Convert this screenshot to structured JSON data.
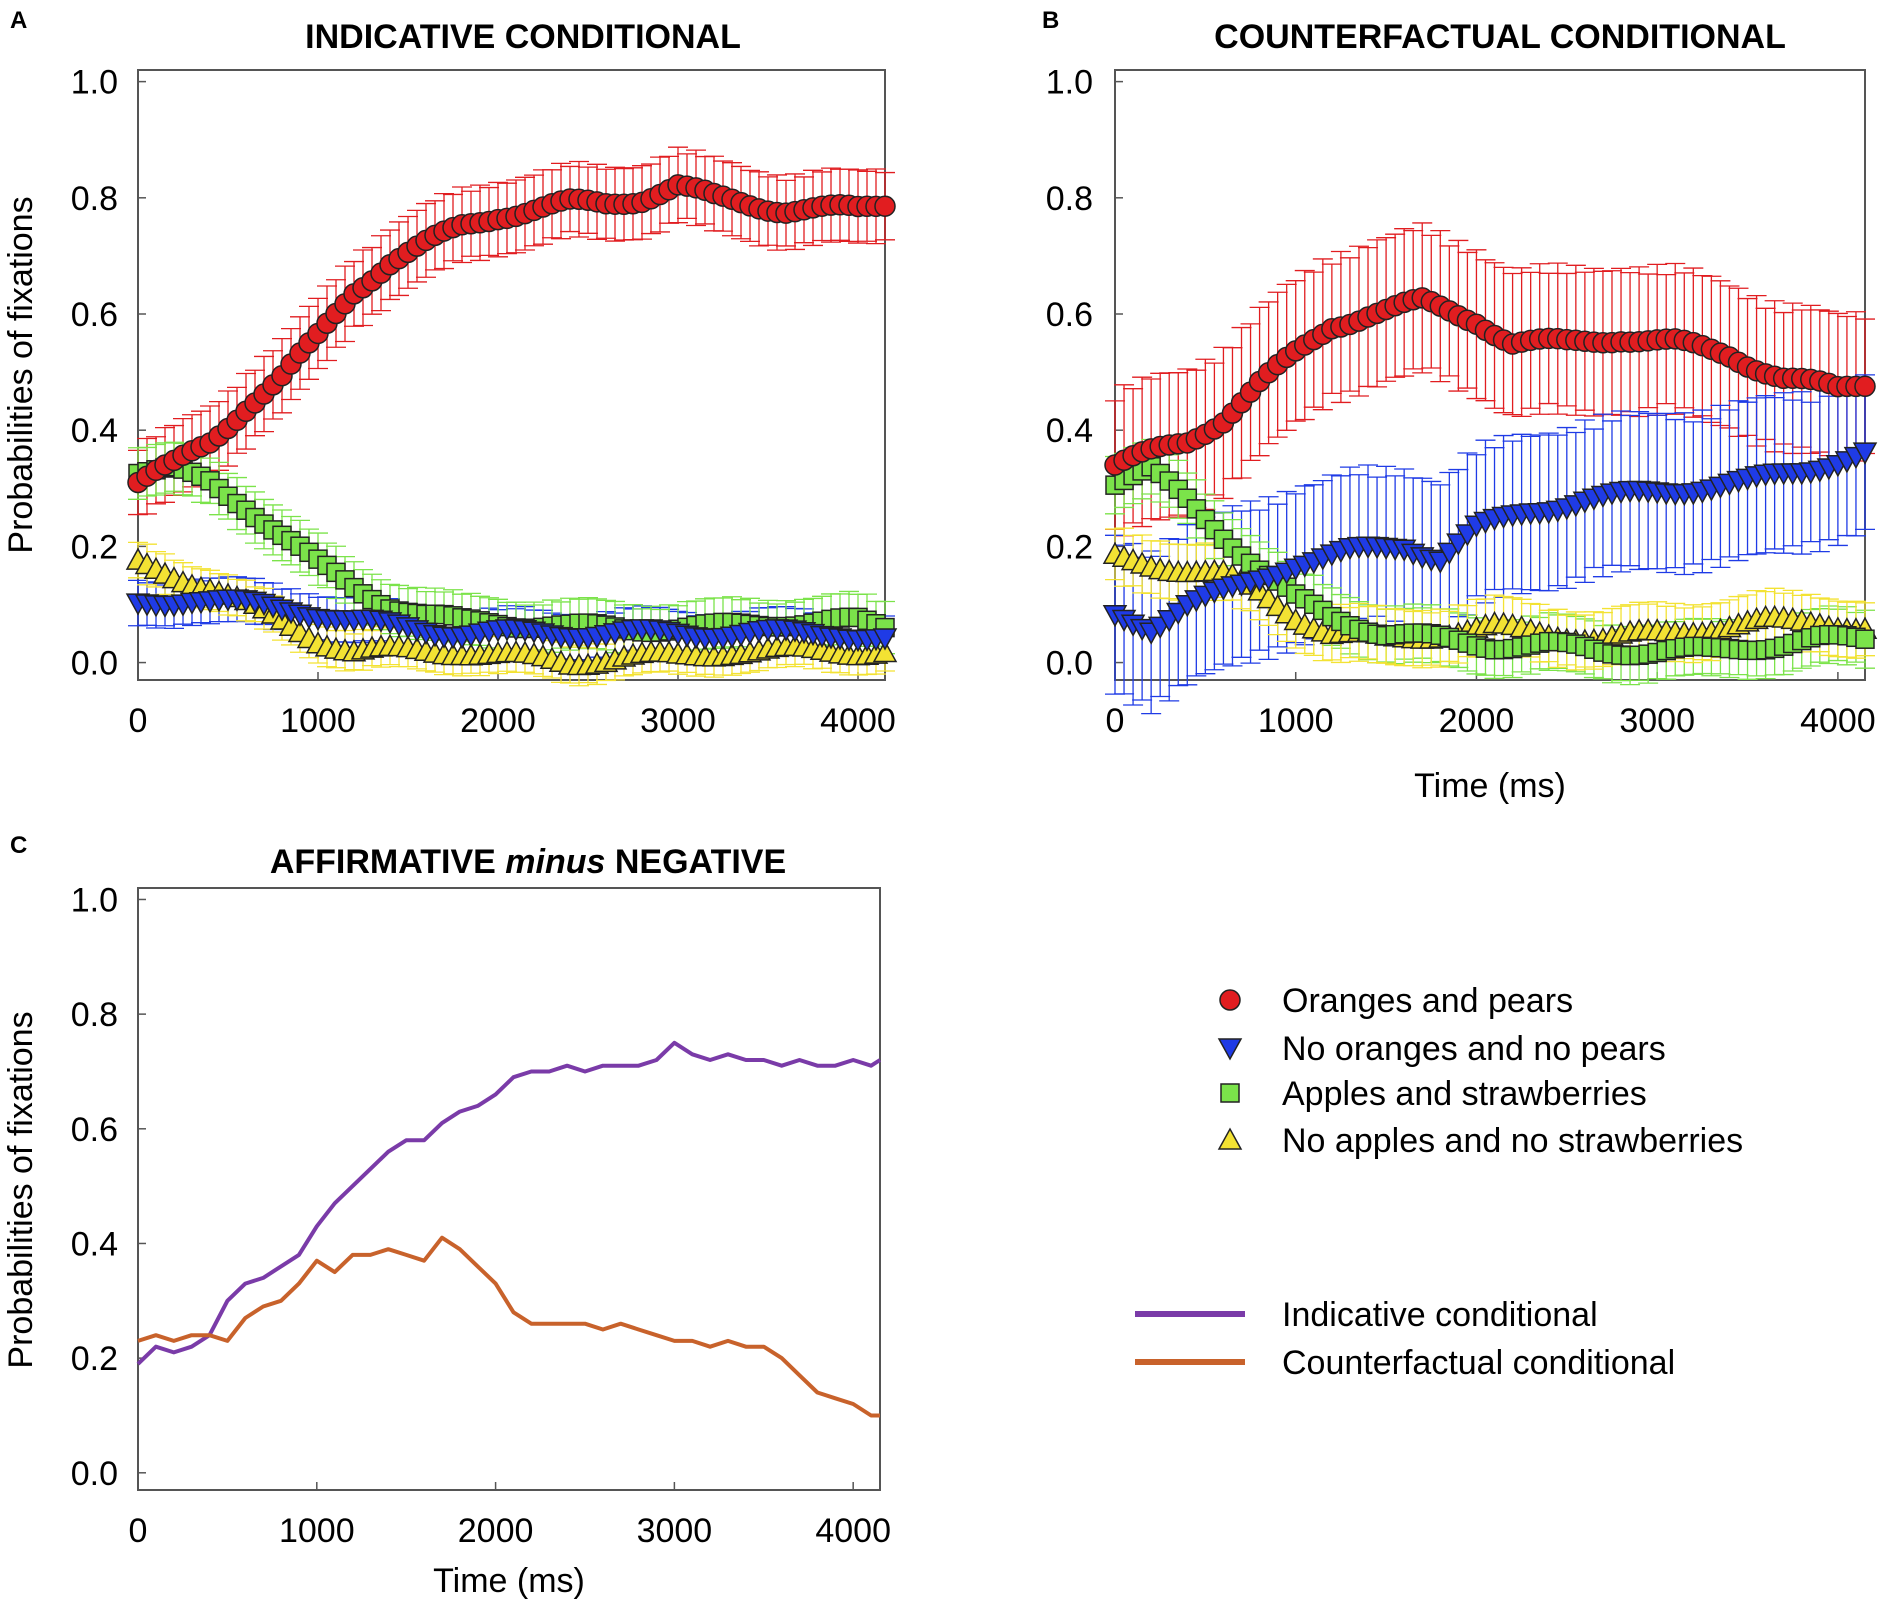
{
  "colors": {
    "oranges": "#e11d20",
    "no_oranges": "#1f3be6",
    "apples": "#7be34a",
    "no_apples": "#f3e233",
    "indicative": "#7a3ba8",
    "counterfactual": "#c8622b"
  },
  "chart_data": [
    {
      "panel_label": "A",
      "type": "scatter",
      "title": "INDICATIVE CONDITIONAL",
      "xlabel": "",
      "ylabel": "Probabilities of fixations",
      "xlim": [
        0,
        4150
      ],
      "ylim": [
        -0.03,
        1.02
      ],
      "xticks": [
        "0",
        "1000",
        "2000",
        "3000",
        "4000"
      ],
      "yticks": [
        "0.0",
        "0.2",
        "0.4",
        "0.6",
        "0.8",
        "1.0"
      ],
      "x_step": 50,
      "series": [
        {
          "name": "Oranges and pears",
          "marker": "circle",
          "color_key": "oranges",
          "key_x": [
            0,
            200,
            400,
            600,
            800,
            1000,
            1200,
            1400,
            1600,
            1800,
            2000,
            2200,
            2400,
            2600,
            2800,
            3000,
            3200,
            3400,
            3600,
            3800,
            4000,
            4150
          ],
          "key_y": [
            0.31,
            0.34,
            0.38,
            0.44,
            0.49,
            0.56,
            0.64,
            0.69,
            0.72,
            0.75,
            0.77,
            0.78,
            0.79,
            0.79,
            0.8,
            0.82,
            0.8,
            0.79,
            0.78,
            0.78,
            0.78,
            0.79
          ],
          "error": 0.065
        },
        {
          "name": "No oranges and no pears",
          "marker": "triangle-down",
          "color_key": "no_oranges",
          "key_x": [
            0,
            300,
            600,
            900,
            1200,
            1500,
            1800,
            2100,
            2400,
            2700,
            3000,
            3300,
            3600,
            3900,
            4150
          ],
          "key_y": [
            0.1,
            0.11,
            0.1,
            0.09,
            0.07,
            0.06,
            0.05,
            0.05,
            0.05,
            0.05,
            0.05,
            0.05,
            0.05,
            0.05,
            0.04
          ],
          "error": 0.04
        },
        {
          "name": "Apples and strawberries",
          "marker": "square",
          "color_key": "apples",
          "key_x": [
            0,
            200,
            400,
            600,
            800,
            1000,
            1200,
            1400,
            1600,
            1800,
            2000,
            2400,
            2800,
            3200,
            3600,
            4000,
            4150
          ],
          "key_y": [
            0.33,
            0.33,
            0.31,
            0.27,
            0.22,
            0.17,
            0.13,
            0.1,
            0.08,
            0.07,
            0.07,
            0.06,
            0.06,
            0.06,
            0.07,
            0.07,
            0.06
          ],
          "error": 0.045
        },
        {
          "name": "No apples and no strawberries",
          "marker": "triangle-up",
          "color_key": "no_apples",
          "key_x": [
            0,
            200,
            400,
            600,
            800,
            1000,
            1200,
            1500,
            1800,
            2100,
            2400,
            2700,
            3000,
            3300,
            3600,
            3900,
            4150
          ],
          "key_y": [
            0.17,
            0.15,
            0.13,
            0.1,
            0.07,
            0.04,
            0.02,
            0.02,
            0.02,
            0.01,
            0.0,
            0.01,
            0.01,
            0.02,
            0.02,
            0.02,
            0.02
          ],
          "error": 0.035
        }
      ]
    },
    {
      "panel_label": "B",
      "type": "scatter",
      "title": "COUNTERFACTUAL CONDITIONAL",
      "xlabel": "Time (ms)",
      "ylabel": "",
      "xlim": [
        0,
        4150
      ],
      "ylim": [
        -0.03,
        1.02
      ],
      "xticks": [
        "0",
        "1000",
        "2000",
        "3000",
        "4000"
      ],
      "yticks": [
        "0.0",
        "0.2",
        "0.4",
        "0.6",
        "0.8",
        "1.0"
      ],
      "x_step": 50,
      "series": [
        {
          "name": "Oranges and pears",
          "marker": "circle",
          "color_key": "oranges",
          "key_x": [
            0,
            200,
            400,
            600,
            800,
            1000,
            1200,
            1400,
            1700,
            2000,
            2200,
            2500,
            2800,
            3100,
            3400,
            3700,
            4000,
            4150
          ],
          "key_y": [
            0.34,
            0.36,
            0.38,
            0.42,
            0.48,
            0.53,
            0.58,
            0.6,
            0.62,
            0.59,
            0.55,
            0.55,
            0.56,
            0.55,
            0.53,
            0.49,
            0.47,
            0.48
          ],
          "error": 0.13
        },
        {
          "name": "No oranges and no pears",
          "marker": "triangle-down",
          "color_key": "no_oranges",
          "key_x": [
            0,
            200,
            400,
            700,
            1000,
            1300,
            1600,
            1800,
            2000,
            2300,
            2600,
            2900,
            3200,
            3500,
            3800,
            4150
          ],
          "key_y": [
            0.08,
            0.06,
            0.1,
            0.13,
            0.17,
            0.19,
            0.2,
            0.18,
            0.23,
            0.26,
            0.28,
            0.29,
            0.3,
            0.31,
            0.33,
            0.36
          ],
          "error": 0.14
        },
        {
          "name": "Apples and strawberries",
          "marker": "square",
          "color_key": "apples",
          "key_x": [
            0,
            200,
            400,
            600,
            800,
            1000,
            1200,
            1500,
            1800,
            2100,
            2400,
            2700,
            3000,
            3300,
            3600,
            3900,
            4150
          ],
          "key_y": [
            0.31,
            0.33,
            0.28,
            0.22,
            0.16,
            0.11,
            0.08,
            0.05,
            0.04,
            0.03,
            0.03,
            0.02,
            0.02,
            0.02,
            0.03,
            0.04,
            0.04
          ],
          "error": 0.05
        },
        {
          "name": "No apples and no strawberries",
          "marker": "triangle-up",
          "color_key": "no_apples",
          "key_x": [
            0,
            200,
            400,
            600,
            800,
            1000,
            1200,
            1500,
            1800,
            2100,
            2400,
            2700,
            3000,
            3300,
            3600,
            3900,
            4150
          ],
          "key_y": [
            0.18,
            0.17,
            0.16,
            0.15,
            0.12,
            0.08,
            0.05,
            0.04,
            0.05,
            0.06,
            0.05,
            0.04,
            0.05,
            0.06,
            0.07,
            0.07,
            0.06
          ],
          "error": 0.05
        }
      ]
    },
    {
      "panel_label": "C",
      "type": "line",
      "title_parts": [
        "AFFIRMATIVE ",
        "minus",
        " NEGATIVE"
      ],
      "xlabel": "Time (ms)",
      "ylabel": "Probabilities of fixations",
      "xlim": [
        0,
        4150
      ],
      "ylim": [
        -0.03,
        1.02
      ],
      "xticks": [
        "0",
        "1000",
        "2000",
        "3000",
        "4000"
      ],
      "yticks": [
        "0.0",
        "0.2",
        "0.4",
        "0.6",
        "0.8",
        "1.0"
      ],
      "series": [
        {
          "name": "Indicative conditional",
          "color_key": "indicative",
          "x": [
            0,
            100,
            200,
            300,
            400,
            500,
            600,
            700,
            800,
            900,
            1000,
            1100,
            1200,
            1300,
            1400,
            1500,
            1600,
            1700,
            1800,
            1900,
            2000,
            2100,
            2200,
            2300,
            2400,
            2500,
            2600,
            2700,
            2800,
            2900,
            3000,
            3100,
            3200,
            3300,
            3400,
            3500,
            3600,
            3700,
            3800,
            3900,
            4000,
            4100,
            4150
          ],
          "y": [
            0.19,
            0.22,
            0.21,
            0.22,
            0.24,
            0.3,
            0.33,
            0.34,
            0.36,
            0.38,
            0.43,
            0.47,
            0.5,
            0.53,
            0.56,
            0.58,
            0.58,
            0.61,
            0.63,
            0.64,
            0.66,
            0.69,
            0.7,
            0.7,
            0.71,
            0.7,
            0.71,
            0.71,
            0.71,
            0.72,
            0.75,
            0.73,
            0.72,
            0.73,
            0.72,
            0.72,
            0.71,
            0.72,
            0.71,
            0.71,
            0.72,
            0.71,
            0.72
          ]
        },
        {
          "name": "Counterfactual conditional",
          "color_key": "counterfactual",
          "x": [
            0,
            100,
            200,
            300,
            400,
            500,
            600,
            700,
            800,
            900,
            1000,
            1100,
            1200,
            1300,
            1400,
            1500,
            1600,
            1700,
            1800,
            1900,
            2000,
            2100,
            2200,
            2300,
            2400,
            2500,
            2600,
            2700,
            2800,
            2900,
            3000,
            3100,
            3200,
            3300,
            3400,
            3500,
            3600,
            3700,
            3800,
            3900,
            4000,
            4100,
            4150
          ],
          "y": [
            0.23,
            0.24,
            0.23,
            0.24,
            0.24,
            0.23,
            0.27,
            0.29,
            0.3,
            0.33,
            0.37,
            0.35,
            0.38,
            0.38,
            0.39,
            0.38,
            0.37,
            0.41,
            0.39,
            0.36,
            0.33,
            0.28,
            0.26,
            0.26,
            0.26,
            0.26,
            0.25,
            0.26,
            0.25,
            0.24,
            0.23,
            0.23,
            0.22,
            0.23,
            0.22,
            0.22,
            0.2,
            0.17,
            0.14,
            0.13,
            0.12,
            0.1,
            0.1
          ]
        }
      ]
    }
  ],
  "legend_markers": [
    {
      "label": "Oranges and pears",
      "marker": "circle",
      "color_key": "oranges"
    },
    {
      "label": "No oranges and no pears",
      "marker": "triangle-down",
      "color_key": "no_oranges"
    },
    {
      "label": "Apples and strawberries",
      "marker": "square",
      "color_key": "apples"
    },
    {
      "label": "No apples and no strawberries",
      "marker": "triangle-up",
      "color_key": "no_apples"
    }
  ],
  "legend_lines": [
    {
      "label": "Indicative conditional",
      "color_key": "indicative"
    },
    {
      "label": "Counterfactual conditional",
      "color_key": "counterfactual"
    }
  ]
}
